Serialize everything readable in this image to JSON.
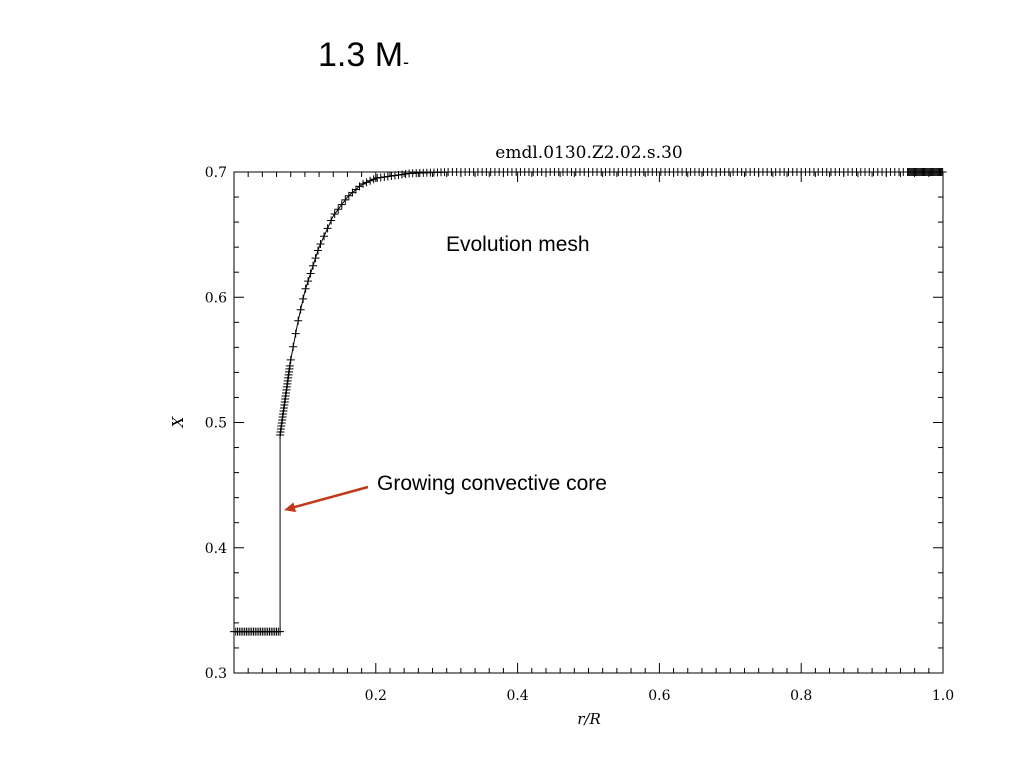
{
  "slide": {
    "title": "1.3 M",
    "title_sub": "-"
  },
  "chart_data": {
    "type": "scatter",
    "title": "emdl.0130.Z2.02.s.30",
    "xlabel": "r/R",
    "ylabel": "X",
    "xlim": [
      0.0,
      1.0
    ],
    "ylim": [
      0.3,
      0.7
    ],
    "x_ticks": [
      0.2,
      0.4,
      0.6,
      0.8,
      1.0
    ],
    "x_tick_labels": [
      "0.2",
      "0.4",
      "0.6",
      "0.8",
      "1.0"
    ],
    "y_ticks": [
      0.3,
      0.4,
      0.5,
      0.6,
      0.7
    ],
    "y_tick_labels": [
      "0.3",
      "0.4",
      "0.5",
      "0.6",
      "0.7"
    ],
    "grid": false,
    "marker": "plus",
    "line_color": "#000000",
    "series": [
      {
        "core_x_start": 0.0,
        "core_x_end": 0.065,
        "core_X": 0.333,
        "jump_x": 0.065,
        "jump_X_low": 0.333,
        "jump_X_high": 0.49,
        "envelope_points": [
          [
            0.065,
            0.49
          ],
          [
            0.07,
            0.51
          ],
          [
            0.08,
            0.55
          ],
          [
            0.09,
            0.58
          ],
          [
            0.1,
            0.605
          ],
          [
            0.12,
            0.64
          ],
          [
            0.14,
            0.665
          ],
          [
            0.16,
            0.68
          ],
          [
            0.18,
            0.69
          ],
          [
            0.2,
            0.695
          ],
          [
            0.25,
            0.699
          ],
          [
            0.3,
            0.7
          ],
          [
            0.5,
            0.7
          ],
          [
            0.7,
            0.7
          ],
          [
            0.9,
            0.7
          ],
          [
            1.0,
            0.7
          ]
        ]
      }
    ],
    "annotations": [
      {
        "text": "Evolution mesh"
      },
      {
        "text": "Growing convective core",
        "arrow_to": [
          0.065,
          0.43
        ],
        "arrow_color": "#c0391b"
      }
    ]
  }
}
